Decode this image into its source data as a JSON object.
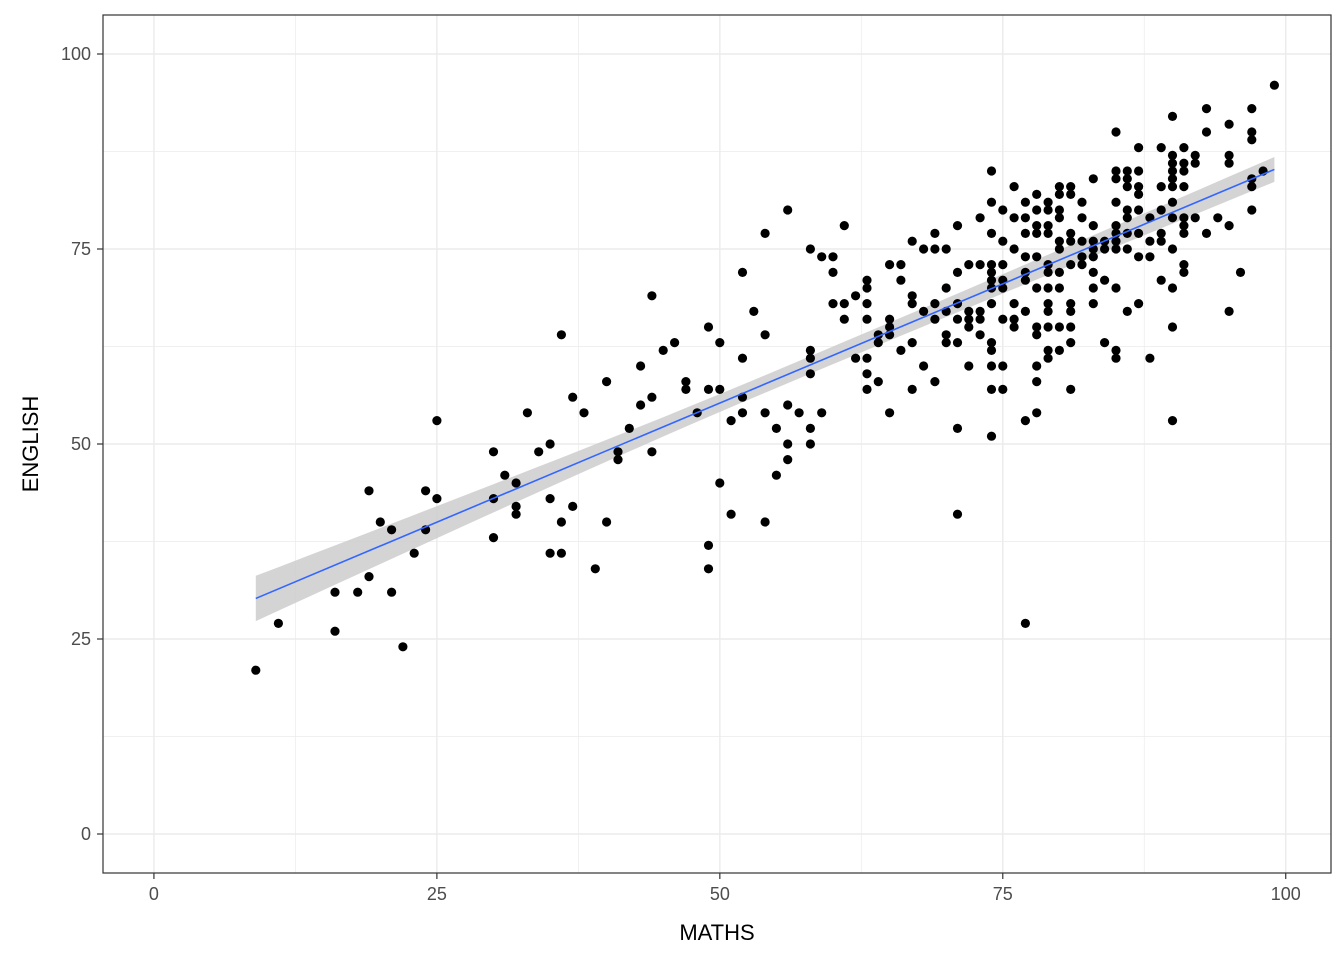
{
  "chart_data": {
    "type": "scatter",
    "title": "",
    "xlabel": "MATHS",
    "ylabel": "ENGLISH",
    "xlim": [
      -4.5,
      104
    ],
    "ylim": [
      -5,
      105
    ],
    "x_ticks": [
      0,
      25,
      50,
      75,
      100
    ],
    "y_ticks": [
      0,
      25,
      50,
      75,
      100
    ],
    "x_tick_labels": [
      "0",
      "25",
      "50",
      "75",
      "100"
    ],
    "y_tick_labels": [
      "0",
      "25",
      "50",
      "75",
      "100"
    ],
    "grid": true,
    "legend": "none",
    "colors": {
      "points": "#000000",
      "fit_line": "#3366ff",
      "ribbon": "#cccccc",
      "grid": "#ebebeb",
      "panel_border": "#333333"
    },
    "points": [
      [
        9,
        21
      ],
      [
        11,
        27
      ],
      [
        16,
        31
      ],
      [
        16,
        26
      ],
      [
        18,
        31
      ],
      [
        19,
        44
      ],
      [
        19,
        33
      ],
      [
        20,
        40
      ],
      [
        21,
        39
      ],
      [
        21,
        31
      ],
      [
        22,
        24
      ],
      [
        23,
        36
      ],
      [
        24,
        44
      ],
      [
        24,
        39
      ],
      [
        25,
        53
      ],
      [
        25,
        43
      ],
      [
        30,
        49
      ],
      [
        30,
        43
      ],
      [
        30,
        38
      ],
      [
        31,
        46
      ],
      [
        32,
        45
      ],
      [
        32,
        42
      ],
      [
        32,
        41
      ],
      [
        33,
        54
      ],
      [
        34,
        49
      ],
      [
        35,
        50
      ],
      [
        35,
        43
      ],
      [
        35,
        36
      ],
      [
        36,
        64
      ],
      [
        36,
        40
      ],
      [
        36,
        36
      ],
      [
        37,
        56
      ],
      [
        37,
        42
      ],
      [
        38,
        54
      ],
      [
        39,
        34
      ],
      [
        40,
        58
      ],
      [
        40,
        40
      ],
      [
        41,
        49
      ],
      [
        41,
        48
      ],
      [
        42,
        52
      ],
      [
        43,
        60
      ],
      [
        43,
        55
      ],
      [
        44,
        69
      ],
      [
        44,
        56
      ],
      [
        44,
        49
      ],
      [
        45,
        62
      ],
      [
        46,
        63
      ],
      [
        47,
        58
      ],
      [
        47,
        57
      ],
      [
        48,
        54
      ],
      [
        49,
        65
      ],
      [
        49,
        57
      ],
      [
        49,
        37
      ],
      [
        49,
        34
      ],
      [
        50,
        63
      ],
      [
        50,
        57
      ],
      [
        50,
        45
      ],
      [
        51,
        53
      ],
      [
        51,
        41
      ],
      [
        52,
        72
      ],
      [
        52,
        61
      ],
      [
        52,
        56
      ],
      [
        52,
        54
      ],
      [
        53,
        67
      ],
      [
        54,
        77
      ],
      [
        54,
        64
      ],
      [
        54,
        54
      ],
      [
        54,
        40
      ],
      [
        55,
        52
      ],
      [
        55,
        46
      ],
      [
        56,
        80
      ],
      [
        56,
        55
      ],
      [
        56,
        50
      ],
      [
        56,
        48
      ],
      [
        57,
        54
      ],
      [
        58,
        75
      ],
      [
        58,
        62
      ],
      [
        58,
        61
      ],
      [
        58,
        59
      ],
      [
        58,
        52
      ],
      [
        58,
        50
      ],
      [
        59,
        74
      ],
      [
        59,
        54
      ],
      [
        60,
        74
      ],
      [
        60,
        72
      ],
      [
        60,
        68
      ],
      [
        61,
        78
      ],
      [
        61,
        68
      ],
      [
        61,
        66
      ],
      [
        62,
        69
      ],
      [
        62,
        61
      ],
      [
        63,
        71
      ],
      [
        63,
        70
      ],
      [
        63,
        68
      ],
      [
        63,
        66
      ],
      [
        63,
        61
      ],
      [
        63,
        57
      ],
      [
        63,
        59
      ],
      [
        64,
        64
      ],
      [
        64,
        63
      ],
      [
        64,
        58
      ],
      [
        65,
        73
      ],
      [
        65,
        66
      ],
      [
        65,
        65
      ],
      [
        65,
        64
      ],
      [
        65,
        54
      ],
      [
        66,
        73
      ],
      [
        66,
        71
      ],
      [
        66,
        62
      ],
      [
        67,
        76
      ],
      [
        67,
        69
      ],
      [
        67,
        68
      ],
      [
        67,
        63
      ],
      [
        67,
        57
      ],
      [
        68,
        75
      ],
      [
        68,
        67
      ],
      [
        68,
        60
      ],
      [
        69,
        77
      ],
      [
        69,
        75
      ],
      [
        69,
        68
      ],
      [
        69,
        66
      ],
      [
        69,
        58
      ],
      [
        70,
        75
      ],
      [
        70,
        70
      ],
      [
        70,
        67
      ],
      [
        70,
        64
      ],
      [
        70,
        63
      ],
      [
        71,
        78
      ],
      [
        71,
        72
      ],
      [
        71,
        68
      ],
      [
        71,
        66
      ],
      [
        71,
        63
      ],
      [
        71,
        52
      ],
      [
        71,
        41
      ],
      [
        72,
        73
      ],
      [
        72,
        67
      ],
      [
        72,
        66
      ],
      [
        72,
        65
      ],
      [
        72,
        60
      ],
      [
        73,
        79
      ],
      [
        73,
        73
      ],
      [
        73,
        67
      ],
      [
        73,
        66
      ],
      [
        73,
        64
      ],
      [
        74,
        85
      ],
      [
        74,
        81
      ],
      [
        74,
        77
      ],
      [
        74,
        73
      ],
      [
        74,
        72
      ],
      [
        74,
        71
      ],
      [
        74,
        70
      ],
      [
        74,
        68
      ],
      [
        74,
        63
      ],
      [
        74,
        62
      ],
      [
        74,
        60
      ],
      [
        74,
        57
      ],
      [
        74,
        51
      ],
      [
        75,
        80
      ],
      [
        75,
        76
      ],
      [
        75,
        73
      ],
      [
        75,
        71
      ],
      [
        75,
        70
      ],
      [
        75,
        66
      ],
      [
        75,
        60
      ],
      [
        75,
        57
      ],
      [
        76,
        83
      ],
      [
        76,
        79
      ],
      [
        76,
        75
      ],
      [
        76,
        68
      ],
      [
        76,
        66
      ],
      [
        76,
        65
      ],
      [
        77,
        81
      ],
      [
        77,
        79
      ],
      [
        77,
        77
      ],
      [
        77,
        74
      ],
      [
        77,
        72
      ],
      [
        77,
        71
      ],
      [
        77,
        67
      ],
      [
        77,
        53
      ],
      [
        77,
        27
      ],
      [
        78,
        82
      ],
      [
        78,
        80
      ],
      [
        78,
        78
      ],
      [
        78,
        77
      ],
      [
        78,
        74
      ],
      [
        78,
        70
      ],
      [
        78,
        65
      ],
      [
        78,
        64
      ],
      [
        78,
        60
      ],
      [
        78,
        58
      ],
      [
        78,
        54
      ],
      [
        79,
        81
      ],
      [
        79,
        80
      ],
      [
        79,
        78
      ],
      [
        79,
        77
      ],
      [
        79,
        73
      ],
      [
        79,
        72
      ],
      [
        79,
        70
      ],
      [
        79,
        68
      ],
      [
        79,
        67
      ],
      [
        79,
        65
      ],
      [
        79,
        62
      ],
      [
        79,
        61
      ],
      [
        80,
        83
      ],
      [
        80,
        82
      ],
      [
        80,
        80
      ],
      [
        80,
        79
      ],
      [
        80,
        76
      ],
      [
        80,
        75
      ],
      [
        80,
        72
      ],
      [
        80,
        70
      ],
      [
        80,
        65
      ],
      [
        80,
        62
      ],
      [
        81,
        83
      ],
      [
        81,
        82
      ],
      [
        81,
        77
      ],
      [
        81,
        76
      ],
      [
        81,
        73
      ],
      [
        81,
        68
      ],
      [
        81,
        67
      ],
      [
        81,
        65
      ],
      [
        81,
        63
      ],
      [
        81,
        57
      ],
      [
        82,
        81
      ],
      [
        82,
        79
      ],
      [
        82,
        76
      ],
      [
        82,
        74
      ],
      [
        82,
        73
      ],
      [
        83,
        84
      ],
      [
        83,
        78
      ],
      [
        83,
        76
      ],
      [
        83,
        75
      ],
      [
        83,
        74
      ],
      [
        83,
        72
      ],
      [
        83,
        70
      ],
      [
        83,
        68
      ],
      [
        84,
        76
      ],
      [
        84,
        75
      ],
      [
        84,
        71
      ],
      [
        84,
        63
      ],
      [
        85,
        90
      ],
      [
        85,
        85
      ],
      [
        85,
        84
      ],
      [
        85,
        81
      ],
      [
        85,
        78
      ],
      [
        85,
        77
      ],
      [
        85,
        76
      ],
      [
        85,
        75
      ],
      [
        85,
        70
      ],
      [
        85,
        62
      ],
      [
        85,
        61
      ],
      [
        86,
        85
      ],
      [
        86,
        84
      ],
      [
        86,
        83
      ],
      [
        86,
        80
      ],
      [
        86,
        79
      ],
      [
        86,
        77
      ],
      [
        86,
        75
      ],
      [
        86,
        67
      ],
      [
        87,
        88
      ],
      [
        87,
        85
      ],
      [
        87,
        83
      ],
      [
        87,
        82
      ],
      [
        87,
        80
      ],
      [
        87,
        77
      ],
      [
        87,
        74
      ],
      [
        87,
        68
      ],
      [
        88,
        79
      ],
      [
        88,
        76
      ],
      [
        88,
        74
      ],
      [
        88,
        61
      ],
      [
        89,
        88
      ],
      [
        89,
        83
      ],
      [
        89,
        80
      ],
      [
        89,
        77
      ],
      [
        89,
        76
      ],
      [
        89,
        71
      ],
      [
        90,
        92
      ],
      [
        90,
        87
      ],
      [
        90,
        86
      ],
      [
        90,
        85
      ],
      [
        90,
        84
      ],
      [
        90,
        83
      ],
      [
        90,
        81
      ],
      [
        90,
        79
      ],
      [
        90,
        75
      ],
      [
        90,
        70
      ],
      [
        90,
        65
      ],
      [
        90,
        53
      ],
      [
        91,
        88
      ],
      [
        91,
        86
      ],
      [
        91,
        85
      ],
      [
        91,
        83
      ],
      [
        91,
        79
      ],
      [
        91,
        78
      ],
      [
        91,
        77
      ],
      [
        91,
        73
      ],
      [
        91,
        72
      ],
      [
        92,
        87
      ],
      [
        92,
        86
      ],
      [
        92,
        79
      ],
      [
        93,
        93
      ],
      [
        93,
        90
      ],
      [
        93,
        77
      ],
      [
        94,
        79
      ],
      [
        95,
        91
      ],
      [
        95,
        87
      ],
      [
        95,
        86
      ],
      [
        95,
        78
      ],
      [
        95,
        67
      ],
      [
        96,
        72
      ],
      [
        97,
        93
      ],
      [
        97,
        90
      ],
      [
        97,
        89
      ],
      [
        97,
        84
      ],
      [
        97,
        83
      ],
      [
        97,
        80
      ],
      [
        98,
        85
      ],
      [
        99,
        96
      ]
    ],
    "fit": {
      "x": [
        9,
        99
      ],
      "y": [
        30.2,
        85.2
      ],
      "ribbon_half_width": [
        2.9,
        1.6
      ]
    }
  }
}
